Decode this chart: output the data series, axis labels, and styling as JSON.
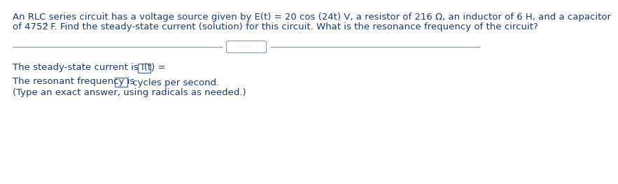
{
  "bg_color": "#ffffff",
  "text_color": "#1a3a6b",
  "line_color": "#8899bb",
  "box_color": "#4466aa",
  "problem_line1": "An RLC series circuit has a voltage source given by E(t) = 20 cos (24t) V, a resistor of 216 Ω, an inductor of 6 H, and a capacitor",
  "problem_line2_pre": "of 4752",
  "problem_line2_sup": "⁻¹",
  "problem_line2_post": " F. Find the steady-state current (solution) for this circuit. What is the resonance frequency of the circuit?",
  "steady_line": "The steady-state current is I(t) = ",
  "steady_suffix": ".",
  "resonant_line": "The resonant frequency is ",
  "resonant_suffix": " cycles per second.",
  "note_line": "(Type an exact answer, using radicals as needed.)",
  "dots_text": "· · ·",
  "font_size": 9.5,
  "sup_font_size": 7.5
}
